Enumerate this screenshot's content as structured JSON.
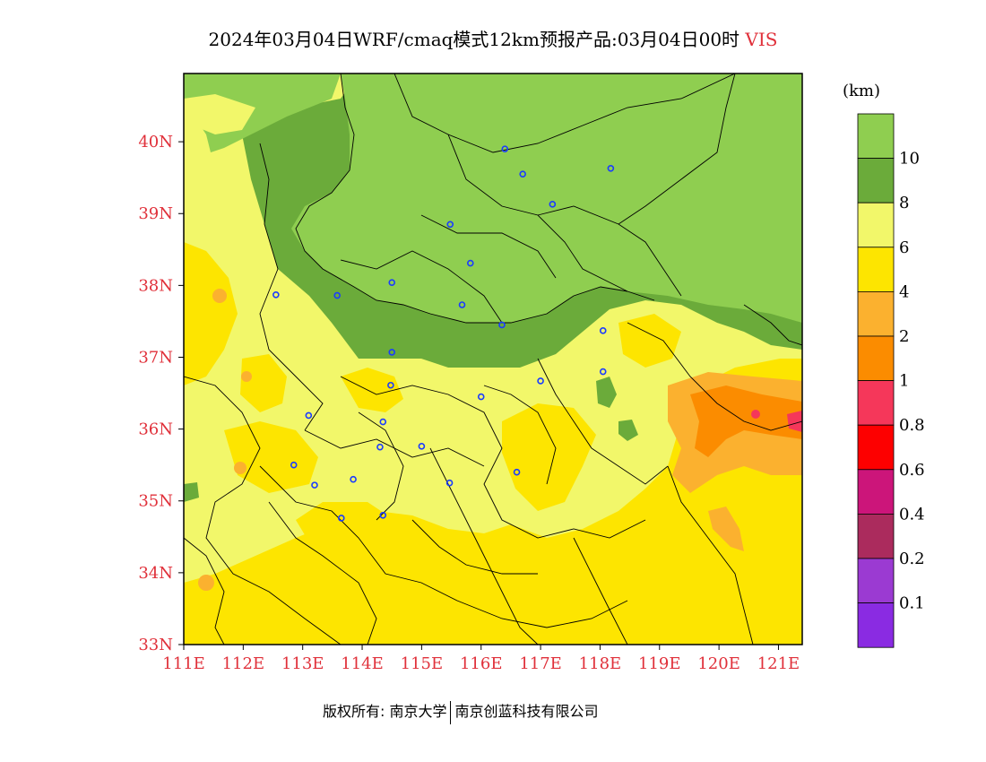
{
  "title": {
    "main": "2024年03月04日WRF/cmaq模式12km预报产品:03月04日00时",
    "variable": "VIS"
  },
  "map": {
    "lon_range": [
      111,
      121.4
    ],
    "lat_range": [
      33,
      40.95
    ],
    "x_ticks": [
      "111E",
      "112E",
      "113E",
      "114E",
      "115E",
      "116E",
      "117E",
      "118E",
      "119E",
      "120E",
      "121E"
    ],
    "y_ticks": [
      "33N",
      "34N",
      "35N",
      "36N",
      "37N",
      "38N",
      "39N",
      "40N"
    ],
    "colors": {
      "vis_gt10": "#8fce50",
      "vis_8_10": "#6bab3a",
      "vis_6_8": "#f2f76a",
      "vis_4_6": "#fde500",
      "vis_2_4": "#fbb12f",
      "vis_1_2": "#fb8c00",
      "vis_08_1": "#f5375a",
      "city_marker": "#1a3cff",
      "boundary": "#000000"
    },
    "cities": [
      [
        116.4,
        39.9
      ],
      [
        116.7,
        39.55
      ],
      [
        117.2,
        39.13
      ],
      [
        118.18,
        39.63
      ],
      [
        115.48,
        38.85
      ],
      [
        115.82,
        38.31
      ],
      [
        114.5,
        38.04
      ],
      [
        113.58,
        37.86
      ],
      [
        115.68,
        37.73
      ],
      [
        116.35,
        37.45
      ],
      [
        112.55,
        37.87
      ],
      [
        117.0,
        36.67
      ],
      [
        118.05,
        37.37
      ],
      [
        118.05,
        36.8
      ],
      [
        114.5,
        37.07
      ],
      [
        114.48,
        36.61
      ],
      [
        116.0,
        36.45
      ],
      [
        113.1,
        36.19
      ],
      [
        114.35,
        36.1
      ],
      [
        114.3,
        35.75
      ],
      [
        115.0,
        35.76
      ],
      [
        112.85,
        35.5
      ],
      [
        113.85,
        35.3
      ],
      [
        113.2,
        35.22
      ],
      [
        115.47,
        35.25
      ],
      [
        116.6,
        35.4
      ],
      [
        114.35,
        34.8
      ],
      [
        113.65,
        34.76
      ]
    ]
  },
  "legend": {
    "unit": "(km)",
    "bins": [
      {
        "color": "#8fce50"
      },
      {
        "color": "#6bab3a",
        "label": "10"
      },
      {
        "color": "#f2f76a",
        "label": "8"
      },
      {
        "color": "#fde500",
        "label": "6"
      },
      {
        "color": "#fbb12f",
        "label": "4"
      },
      {
        "color": "#fb8c00",
        "label": "2"
      },
      {
        "color": "#f5375a",
        "label": "1"
      },
      {
        "color": "#fd0000",
        "label": "0.8"
      },
      {
        "color": "#cc157a",
        "label": "0.6"
      },
      {
        "color": "#ab2b5d",
        "label": "0.4"
      },
      {
        "color": "#9b3ad2",
        "label": "0.2"
      },
      {
        "color": "#8a2be2",
        "label": "0.1"
      }
    ]
  },
  "footer": {
    "left": "版权所有: 南京大学",
    "right": "南京创蓝科技有限公司"
  }
}
